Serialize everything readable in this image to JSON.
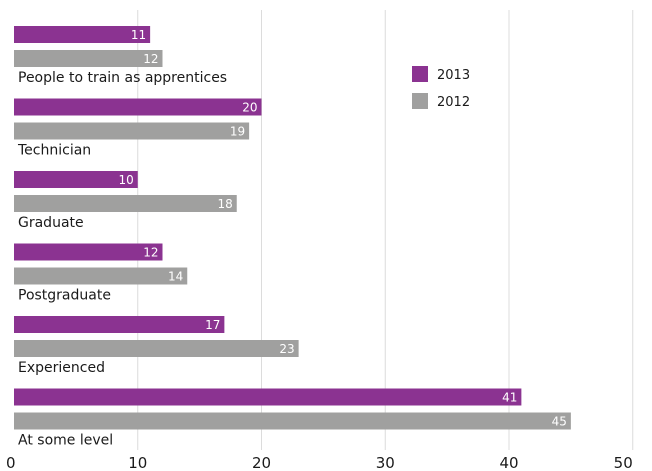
{
  "chart_data": {
    "type": "bar",
    "orientation": "horizontal",
    "categories": [
      "People to train as apprentices",
      "Technician",
      "Graduate",
      "Postgraduate",
      "Experienced",
      "At some level"
    ],
    "series": [
      {
        "name": "2013",
        "values": [
          11,
          20,
          10,
          12,
          17,
          41
        ],
        "color": "#8b3391"
      },
      {
        "name": "2012",
        "values": [
          12,
          19,
          18,
          14,
          23,
          45
        ],
        "color": "#a0a09f"
      }
    ],
    "xlim": [
      0,
      50
    ],
    "xticks": [
      0,
      10,
      20,
      30,
      40,
      50
    ],
    "grid": true,
    "legend_position": "top-right",
    "data_labels": true
  }
}
